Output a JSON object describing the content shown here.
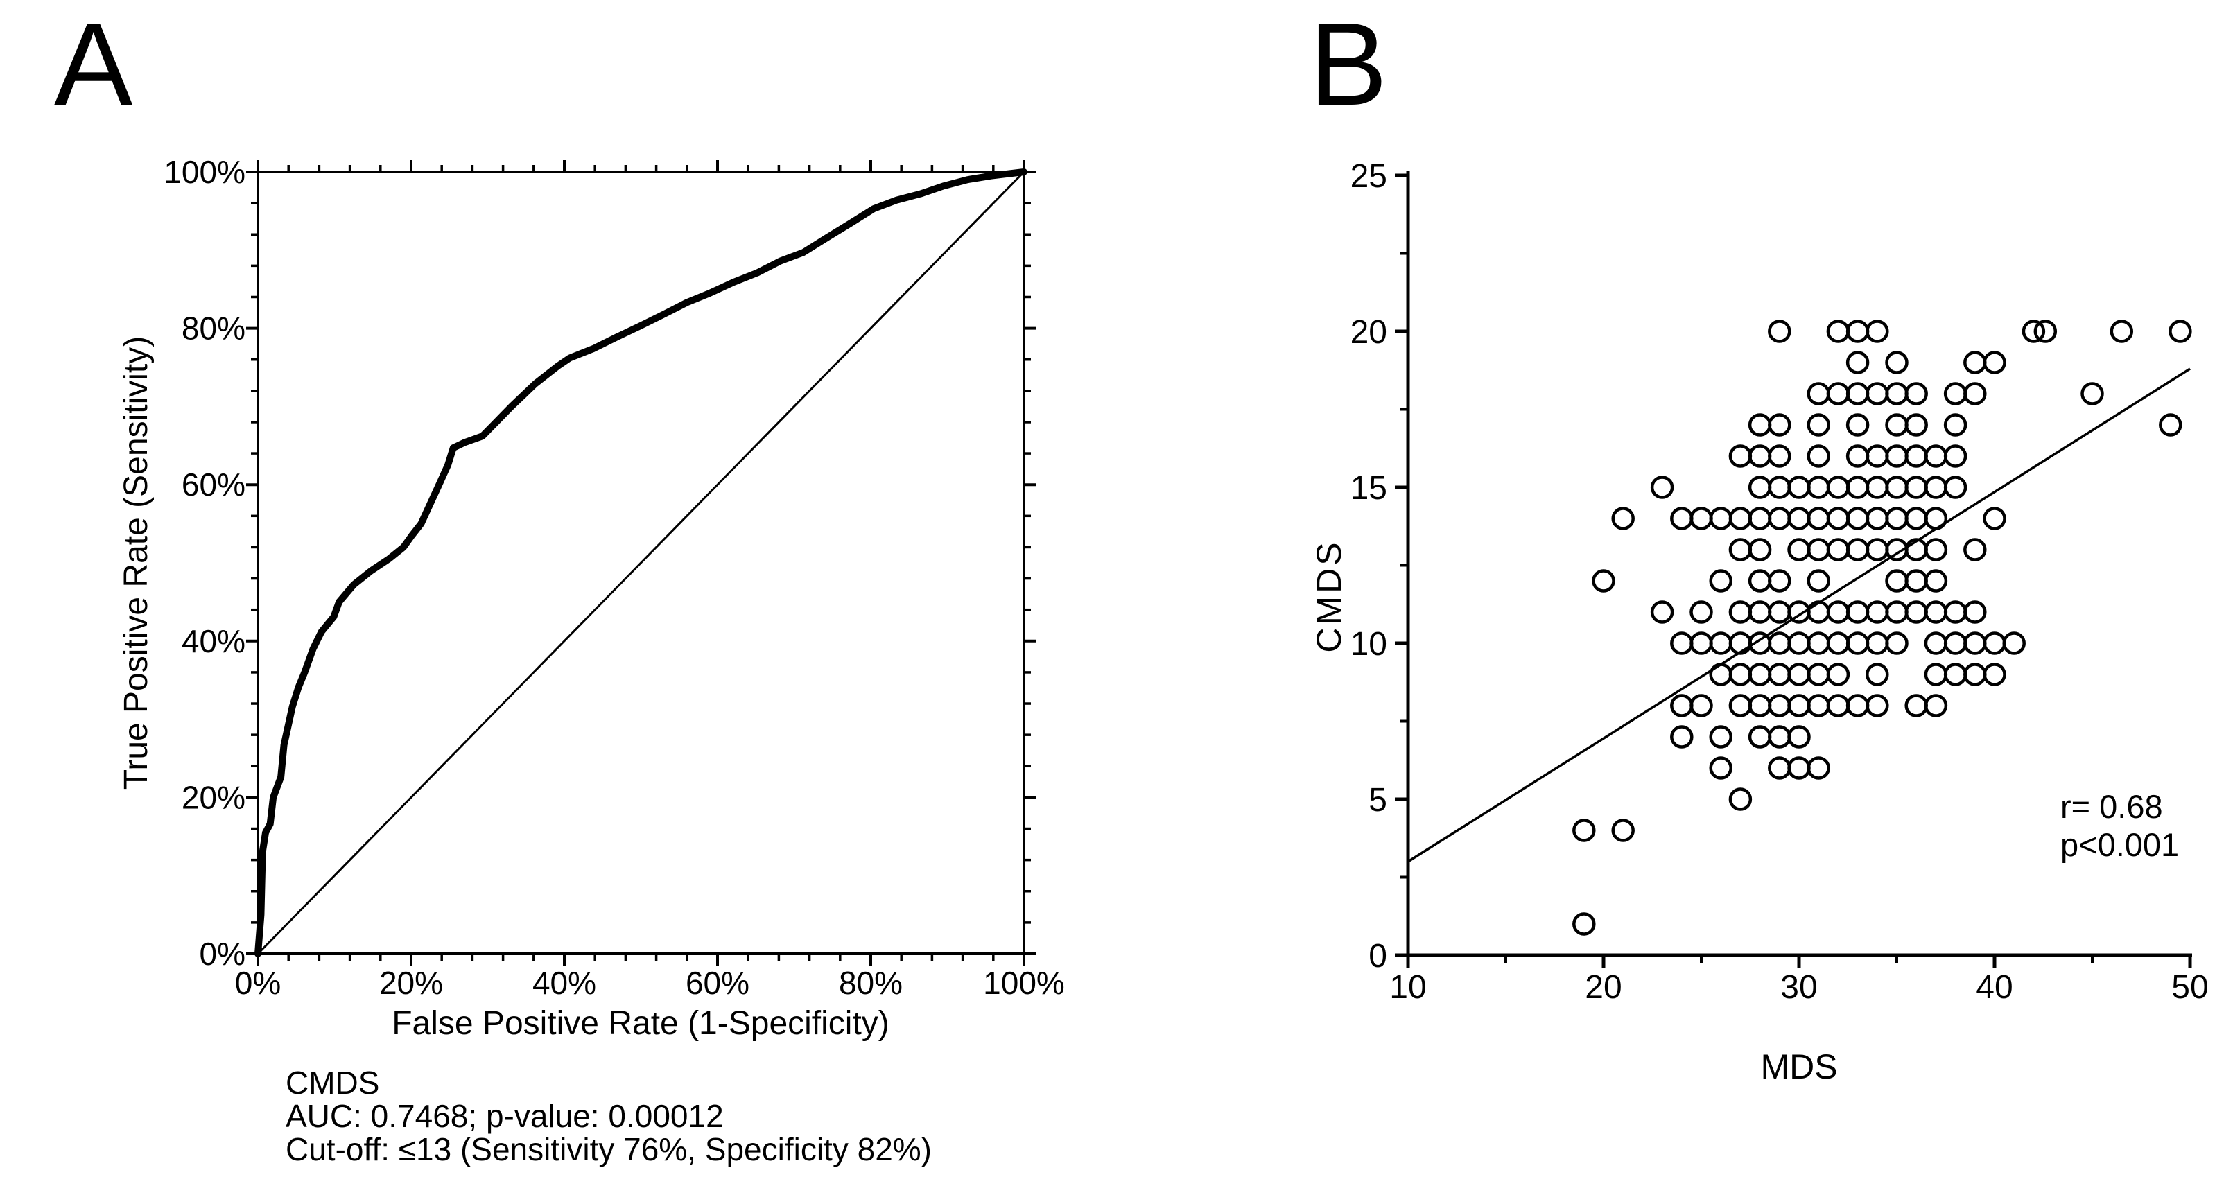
{
  "page": {
    "background": "#ffffff",
    "ink": "#000000"
  },
  "panel_a": {
    "label": "A",
    "x_axis_title": "False Positive Rate (1-Specificity)",
    "y_axis_title": "True Positive Rate (Sensitivity)",
    "annotation_lines": [
      "CMDS",
      "AUC: 0.7468; p-value: 0.00012",
      "Cut-off: ≤13 (Sensitivity 76%, Specificity 82%)"
    ]
  },
  "panel_b": {
    "label": "B",
    "x_axis_title": "MDS",
    "y_axis_title": "CMDS",
    "annotation_lines": [
      "r= 0.68",
      "p<0.001"
    ]
  },
  "chart_data": [
    {
      "type": "line",
      "panel": "A",
      "name": "ROC curve of CMDS",
      "xlabel": "False Positive Rate (1-Specificity)",
      "ylabel": "True Positive Rate (Sensitivity)",
      "xlim": [
        0,
        100
      ],
      "ylim": [
        0,
        100
      ],
      "frame": "box",
      "grid": false,
      "minor_tick_step": 4,
      "x_major_ticks": [
        {
          "v": 0,
          "label": "0%"
        },
        {
          "v": 20,
          "label": "20%"
        },
        {
          "v": 40,
          "label": "40%"
        },
        {
          "v": 60,
          "label": "60%"
        },
        {
          "v": 80,
          "label": "80%"
        },
        {
          "v": 100,
          "label": "100%"
        }
      ],
      "y_major_ticks": [
        {
          "v": 0,
          "label": "0%"
        },
        {
          "v": 20,
          "label": "20%"
        },
        {
          "v": 40,
          "label": "40%"
        },
        {
          "v": 60,
          "label": "60%"
        },
        {
          "v": 80,
          "label": "80%"
        },
        {
          "v": 100,
          "label": "100%"
        }
      ],
      "series": [
        {
          "name": "CMDS ROC curve",
          "style": "thick",
          "points": [
            [
              0,
              0
            ],
            [
              0.4,
              5
            ],
            [
              0.6,
              13
            ],
            [
              1,
              15.5
            ],
            [
              1.6,
              16.6
            ],
            [
              2,
              20
            ],
            [
              3,
              22.6
            ],
            [
              3.4,
              26.7
            ],
            [
              4.5,
              31.6
            ],
            [
              5.3,
              34.1
            ],
            [
              6.1,
              36
            ],
            [
              7.2,
              39
            ],
            [
              8.3,
              41.2
            ],
            [
              9.9,
              43.1
            ],
            [
              10.6,
              45
            ],
            [
              12.5,
              47.2
            ],
            [
              14.8,
              49
            ],
            [
              17.1,
              50.5
            ],
            [
              19,
              52
            ],
            [
              20.1,
              53.5
            ],
            [
              21.3,
              55
            ],
            [
              23.6,
              59.9
            ],
            [
              24.8,
              62.5
            ],
            [
              25.5,
              64.7
            ],
            [
              27,
              65.4
            ],
            [
              29.3,
              66.2
            ],
            [
              30.8,
              67.7
            ],
            [
              33.1,
              70
            ],
            [
              36.2,
              72.9
            ],
            [
              39.2,
              75.2
            ],
            [
              40.7,
              76.2
            ],
            [
              43.8,
              77.4
            ],
            [
              46.9,
              78.9
            ],
            [
              49.9,
              80.3
            ],
            [
              53,
              81.8
            ],
            [
              56,
              83.3
            ],
            [
              59,
              84.5
            ],
            [
              62.1,
              85.9
            ],
            [
              65.2,
              87.1
            ],
            [
              68.2,
              88.6
            ],
            [
              71.2,
              89.7
            ],
            [
              74.3,
              91.6
            ],
            [
              77.3,
              93.4
            ],
            [
              80.4,
              95.3
            ],
            [
              83.4,
              96.4
            ],
            [
              86.5,
              97.2
            ],
            [
              89.5,
              98.2
            ],
            [
              92.6,
              99
            ],
            [
              95.7,
              99.5
            ],
            [
              100,
              100
            ]
          ]
        },
        {
          "name": "chance diagonal",
          "style": "thin",
          "points": [
            [
              0,
              0
            ],
            [
              100,
              100
            ]
          ]
        }
      ],
      "annotations": [
        "CMDS",
        "AUC: 0.7468; p-value: 0.00012",
        "Cut-off: ≤13 (Sensitivity 76%, Specificity 82%)"
      ],
      "auc": 0.7468,
      "p_value": 0.00012,
      "cutoff": "≤13",
      "sensitivity": "76%",
      "specificity": "82%"
    },
    {
      "type": "scatter",
      "panel": "B",
      "name": "Correlation of CMDS with MDS",
      "xlabel": "MDS",
      "ylabel": "CMDS",
      "xlim": [
        10,
        50
      ],
      "ylim": [
        0,
        25
      ],
      "grid": false,
      "x_major_ticks": [
        {
          "v": 10,
          "label": "10"
        },
        {
          "v": 20,
          "label": "20"
        },
        {
          "v": 30,
          "label": "30"
        },
        {
          "v": 40,
          "label": "40"
        },
        {
          "v": 50,
          "label": "50"
        }
      ],
      "x_minor_step": 5,
      "y_major_ticks": [
        {
          "v": 0,
          "label": "0"
        },
        {
          "v": 5,
          "label": "5"
        },
        {
          "v": 10,
          "label": "10"
        },
        {
          "v": 15,
          "label": "15"
        },
        {
          "v": 20,
          "label": "20"
        },
        {
          "v": 25,
          "label": "25"
        }
      ],
      "y_minor_step": 2.5,
      "points": [
        [
          29,
          20
        ],
        [
          32,
          20
        ],
        [
          33,
          20
        ],
        [
          34,
          20
        ],
        [
          42,
          20
        ],
        [
          42.6,
          20
        ],
        [
          46.5,
          20
        ],
        [
          49.5,
          20
        ],
        [
          33,
          19
        ],
        [
          35,
          19
        ],
        [
          39,
          19
        ],
        [
          40,
          19
        ],
        [
          31,
          18
        ],
        [
          32,
          18
        ],
        [
          33,
          18
        ],
        [
          34,
          18
        ],
        [
          35,
          18
        ],
        [
          36,
          18
        ],
        [
          38,
          18
        ],
        [
          39,
          18
        ],
        [
          45,
          18
        ],
        [
          28,
          17
        ],
        [
          29,
          17
        ],
        [
          31,
          17
        ],
        [
          33,
          17
        ],
        [
          35,
          17
        ],
        [
          36,
          17
        ],
        [
          38,
          17
        ],
        [
          49,
          17
        ],
        [
          27,
          16
        ],
        [
          28,
          16
        ],
        [
          29,
          16
        ],
        [
          31,
          16
        ],
        [
          33,
          16
        ],
        [
          34,
          16
        ],
        [
          35,
          16
        ],
        [
          36,
          16
        ],
        [
          37,
          16
        ],
        [
          38,
          16
        ],
        [
          23,
          15
        ],
        [
          28,
          15
        ],
        [
          29,
          15
        ],
        [
          30,
          15
        ],
        [
          31,
          15
        ],
        [
          32,
          15
        ],
        [
          33,
          15
        ],
        [
          34,
          15
        ],
        [
          35,
          15
        ],
        [
          36,
          15
        ],
        [
          37,
          15
        ],
        [
          38,
          15
        ],
        [
          21,
          14
        ],
        [
          24,
          14
        ],
        [
          25,
          14
        ],
        [
          26,
          14
        ],
        [
          27,
          14
        ],
        [
          28,
          14
        ],
        [
          29,
          14
        ],
        [
          30,
          14
        ],
        [
          31,
          14
        ],
        [
          32,
          14
        ],
        [
          33,
          14
        ],
        [
          34,
          14
        ],
        [
          35,
          14
        ],
        [
          36,
          14
        ],
        [
          37,
          14
        ],
        [
          40,
          14
        ],
        [
          27,
          13
        ],
        [
          28,
          13
        ],
        [
          30,
          13
        ],
        [
          31,
          13
        ],
        [
          32,
          13
        ],
        [
          33,
          13
        ],
        [
          34,
          13
        ],
        [
          35,
          13
        ],
        [
          36,
          13
        ],
        [
          37,
          13
        ],
        [
          39,
          13
        ],
        [
          20,
          12
        ],
        [
          26,
          12
        ],
        [
          28,
          12
        ],
        [
          29,
          12
        ],
        [
          31,
          12
        ],
        [
          35,
          12
        ],
        [
          36,
          12
        ],
        [
          37,
          12
        ],
        [
          23,
          11
        ],
        [
          25,
          11
        ],
        [
          27,
          11
        ],
        [
          28,
          11
        ],
        [
          29,
          11
        ],
        [
          30,
          11
        ],
        [
          31,
          11
        ],
        [
          32,
          11
        ],
        [
          33,
          11
        ],
        [
          34,
          11
        ],
        [
          35,
          11
        ],
        [
          36,
          11
        ],
        [
          37,
          11
        ],
        [
          38,
          11
        ],
        [
          39,
          11
        ],
        [
          24,
          10
        ],
        [
          25,
          10
        ],
        [
          26,
          10
        ],
        [
          27,
          10
        ],
        [
          28,
          10
        ],
        [
          29,
          10
        ],
        [
          30,
          10
        ],
        [
          31,
          10
        ],
        [
          32,
          10
        ],
        [
          33,
          10
        ],
        [
          34,
          10
        ],
        [
          35,
          10
        ],
        [
          37,
          10
        ],
        [
          38,
          10
        ],
        [
          39,
          10
        ],
        [
          40,
          10
        ],
        [
          41,
          10
        ],
        [
          26,
          9
        ],
        [
          27,
          9
        ],
        [
          28,
          9
        ],
        [
          29,
          9
        ],
        [
          30,
          9
        ],
        [
          31,
          9
        ],
        [
          32,
          9
        ],
        [
          34,
          9
        ],
        [
          37,
          9
        ],
        [
          38,
          9
        ],
        [
          39,
          9
        ],
        [
          40,
          9
        ],
        [
          24,
          8
        ],
        [
          25,
          8
        ],
        [
          27,
          8
        ],
        [
          28,
          8
        ],
        [
          29,
          8
        ],
        [
          30,
          8
        ],
        [
          31,
          8
        ],
        [
          32,
          8
        ],
        [
          33,
          8
        ],
        [
          34,
          8
        ],
        [
          36,
          8
        ],
        [
          37,
          8
        ],
        [
          24,
          7
        ],
        [
          26,
          7
        ],
        [
          28,
          7
        ],
        [
          29,
          7
        ],
        [
          30,
          7
        ],
        [
          26,
          6
        ],
        [
          29,
          6
        ],
        [
          30,
          6
        ],
        [
          31,
          6
        ],
        [
          27,
          5
        ],
        [
          19,
          4
        ],
        [
          21,
          4
        ],
        [
          19,
          1
        ]
      ],
      "trend_line": {
        "x1": 10,
        "y1": 3.0,
        "x2": 50,
        "y2": 18.8
      },
      "legend": "none",
      "annotations": [
        "r= 0.68",
        "p<0.001"
      ],
      "r": 0.68,
      "p": "<0.001"
    }
  ]
}
